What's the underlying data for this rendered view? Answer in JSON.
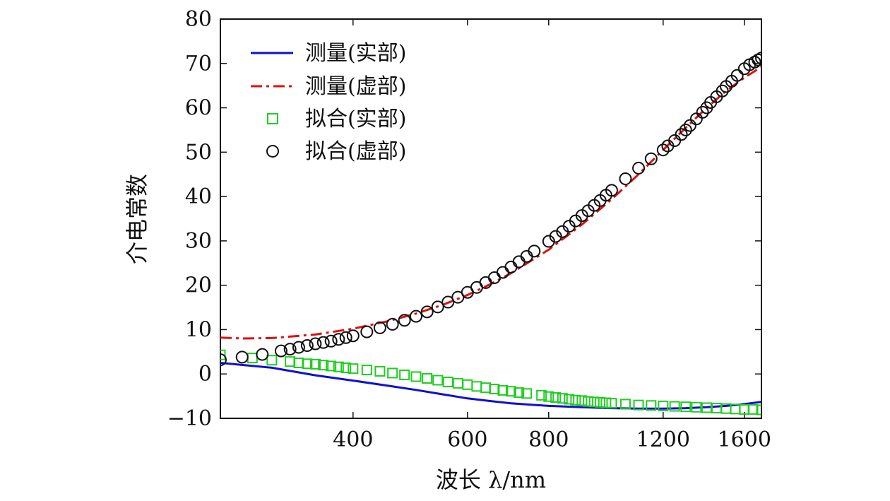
{
  "chart_data": {
    "type": "line",
    "title": "",
    "xlabel": "波长 λ/nm",
    "ylabel": "介电常数",
    "x_scale": "log",
    "xlim": [
      250,
      1700
    ],
    "ylim": [
      -10,
      80
    ],
    "x_ticks": [
      400,
      600,
      800,
      1200,
      1600
    ],
    "x_tick_labels": [
      "400",
      "600",
      "800",
      "1200",
      "1600"
    ],
    "y_ticks": [
      -10,
      0,
      10,
      20,
      30,
      40,
      50,
      60,
      70,
      80
    ],
    "y_tick_labels": [
      "−10",
      "0",
      "10",
      "20",
      "30",
      "40",
      "50",
      "60",
      "70",
      "80"
    ],
    "grid": false,
    "legend_position": "top-left",
    "series": [
      {
        "name": "测量(实部)",
        "kind": "line",
        "color": "#1010d0",
        "x": [
          250,
          300,
          350,
          400,
          450,
          500,
          550,
          600,
          650,
          700,
          800,
          900,
          1000,
          1100,
          1200,
          1300,
          1400,
          1500,
          1600,
          1700
        ],
        "y": [
          2.5,
          1.4,
          -0.3,
          -1.5,
          -2.6,
          -3.6,
          -4.6,
          -5.5,
          -6.1,
          -6.6,
          -7.2,
          -7.5,
          -7.7,
          -7.8,
          -7.8,
          -7.7,
          -7.5,
          -7.2,
          -6.8,
          -6.3
        ]
      },
      {
        "name": "测量(虚部)",
        "kind": "dash-dot",
        "color": "#e01010",
        "x": [
          250,
          270,
          300,
          350,
          400,
          450,
          500,
          550,
          600,
          650,
          700,
          800,
          900,
          1000,
          1100,
          1200,
          1300,
          1400,
          1500,
          1600,
          1700
        ],
        "y": [
          8.2,
          8.0,
          8.1,
          8.9,
          10.2,
          11.8,
          13.6,
          15.6,
          17.8,
          20.2,
          22.7,
          28.0,
          33.7,
          39.4,
          45.0,
          50.5,
          55.5,
          60.0,
          63.8,
          66.8,
          69.2
        ]
      },
      {
        "name": "拟合(实部)",
        "kind": "square-markers",
        "color": "#22cc22",
        "x": [
          250,
          280,
          300,
          320,
          330,
          340,
          350,
          360,
          370,
          380,
          390,
          400,
          420,
          440,
          460,
          480,
          500,
          520,
          540,
          560,
          580,
          600,
          620,
          640,
          660,
          680,
          700,
          720,
          740,
          780,
          800,
          820,
          840,
          860,
          880,
          900,
          920,
          940,
          960,
          980,
          1000,
          1050,
          1100,
          1150,
          1200,
          1250,
          1300,
          1350,
          1400,
          1450,
          1500,
          1550,
          1600,
          1650,
          1700
        ],
        "y": [
          4.3,
          3.6,
          3.1,
          2.8,
          2.5,
          2.3,
          2.2,
          2.0,
          1.8,
          1.6,
          1.4,
          1.2,
          0.9,
          0.6,
          0.2,
          -0.2,
          -0.6,
          -1.0,
          -1.4,
          -1.8,
          -2.1,
          -2.4,
          -2.8,
          -3.1,
          -3.4,
          -3.7,
          -3.9,
          -4.2,
          -4.4,
          -4.8,
          -5.1,
          -5.3,
          -5.5,
          -5.7,
          -5.9,
          -6.0,
          -6.2,
          -6.3,
          -6.4,
          -6.5,
          -6.6,
          -6.8,
          -7.0,
          -7.1,
          -7.2,
          -7.3,
          -7.4,
          -7.5,
          -7.6,
          -7.7,
          -7.8,
          -7.9,
          -8.0,
          -8.0,
          -8.1
        ]
      },
      {
        "name": "拟合(虚部)",
        "kind": "circle-markers",
        "color": "#111111",
        "x": [
          250,
          270,
          290,
          310,
          320,
          330,
          340,
          350,
          360,
          370,
          380,
          390,
          400,
          420,
          440,
          460,
          480,
          500,
          520,
          540,
          560,
          580,
          600,
          620,
          640,
          660,
          680,
          700,
          720,
          740,
          760,
          800,
          820,
          840,
          860,
          880,
          900,
          920,
          940,
          960,
          980,
          1000,
          1050,
          1100,
          1150,
          1200,
          1220,
          1250,
          1280,
          1300,
          1320,
          1350,
          1380,
          1400,
          1420,
          1450,
          1480,
          1500,
          1530,
          1560,
          1600,
          1630,
          1660,
          1680,
          1700
        ],
        "y": [
          3.2,
          3.8,
          4.4,
          5.2,
          5.6,
          6.0,
          6.4,
          6.8,
          7.1,
          7.4,
          7.8,
          8.2,
          8.6,
          9.5,
          10.4,
          11.2,
          12.1,
          13.0,
          14.0,
          15.1,
          16.2,
          17.3,
          18.4,
          19.5,
          20.6,
          21.7,
          22.9,
          24.1,
          25.3,
          26.5,
          27.7,
          29.9,
          31.0,
          32.1,
          33.3,
          34.5,
          35.7,
          36.8,
          38.0,
          39.1,
          40.3,
          41.4,
          44.0,
          46.4,
          48.5,
          50.5,
          51.4,
          52.6,
          54.0,
          55.0,
          56.0,
          57.5,
          59.0,
          60.0,
          61.2,
          62.5,
          63.8,
          64.8,
          66.0,
          67.3,
          68.8,
          69.7,
          70.3,
          70.8,
          71.2
        ]
      }
    ]
  }
}
